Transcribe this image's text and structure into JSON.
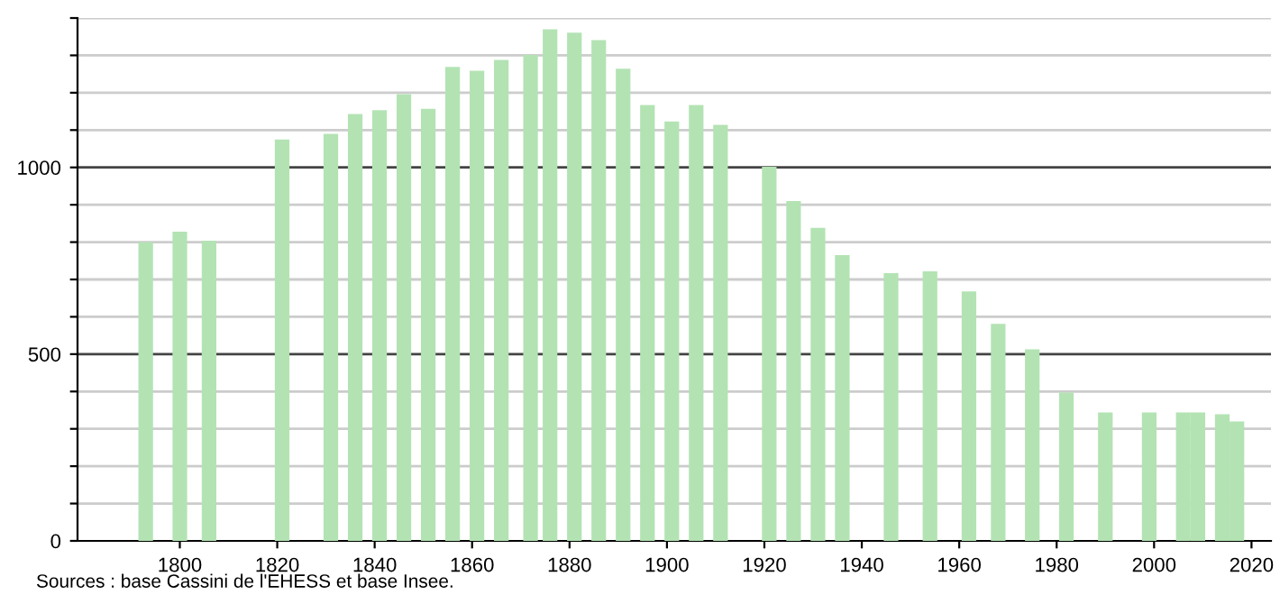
{
  "chart_data": {
    "type": "bar",
    "x": [
      1793,
      1800,
      1806,
      1821,
      1831,
      1836,
      1841,
      1846,
      1851,
      1856,
      1861,
      1866,
      1872,
      1876,
      1881,
      1886,
      1891,
      1896,
      1901,
      1906,
      1911,
      1921,
      1926,
      1931,
      1936,
      1946,
      1954,
      1962,
      1968,
      1975,
      1982,
      1990,
      1999,
      2006,
      2009,
      2014,
      2017
    ],
    "values": [
      800,
      828,
      804,
      1075,
      1090,
      1143,
      1153,
      1196,
      1157,
      1269,
      1259,
      1288,
      1301,
      1370,
      1361,
      1341,
      1264,
      1167,
      1123,
      1167,
      1114,
      1002,
      910,
      838,
      765,
      717,
      722,
      668,
      581,
      513,
      397,
      344,
      344,
      344,
      344,
      339,
      320
    ],
    "color": "#b3e3b3",
    "xlim": [
      1779,
      2024
    ],
    "xticks": [
      1800,
      1820,
      1840,
      1860,
      1880,
      1900,
      1920,
      1940,
      1960,
      1980,
      2000,
      2020
    ],
    "ylim": [
      0,
      1400
    ],
    "yticks": [
      0,
      {
        "value": 100,
        "label": null
      },
      {
        "value": 200,
        "label": null
      },
      {
        "value": 300,
        "label": null
      },
      {
        "value": 400,
        "label": null
      },
      500,
      {
        "value": 600,
        "label": null
      },
      {
        "value": 700,
        "label": null
      },
      {
        "value": 800,
        "label": null
      },
      {
        "value": 900,
        "label": null
      },
      1000,
      {
        "value": 1100,
        "label": null
      },
      {
        "value": 1200,
        "label": null
      },
      {
        "value": 1300,
        "label": null
      },
      {
        "value": 1400,
        "label": null
      }
    ],
    "grid": "y",
    "annotations": [
      "Sources : base Cassini de l'EHESS et base Insee."
    ]
  }
}
